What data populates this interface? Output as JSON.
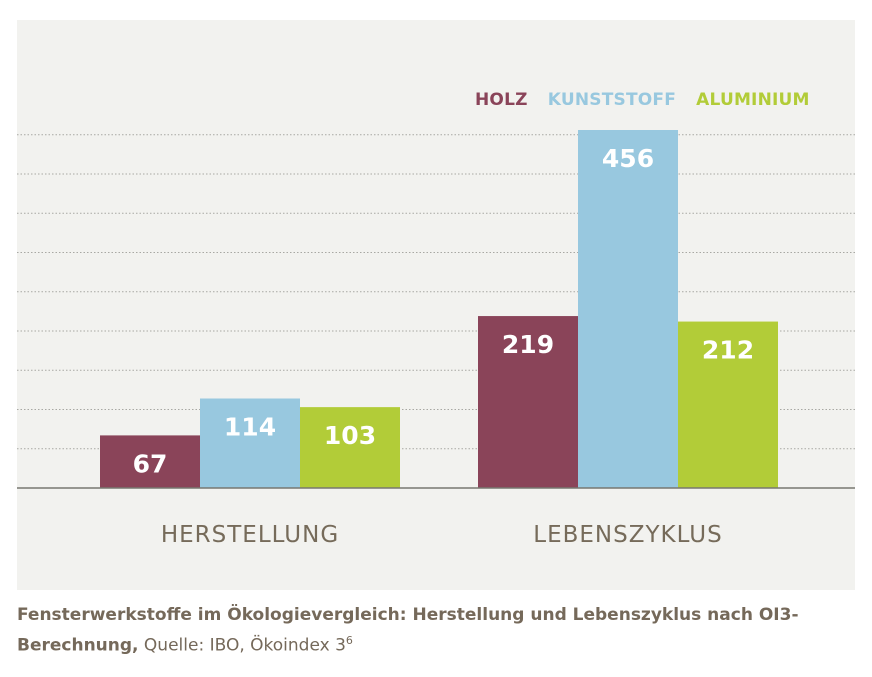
{
  "chart_data": {
    "type": "bar",
    "categories": [
      "HERSTELLUNG",
      "LEBENSZYKLUS"
    ],
    "series": [
      {
        "name": "HOLZ",
        "values": [
          67,
          219
        ],
        "color": "#8a4459"
      },
      {
        "name": "KUNSTSTOFF",
        "values": [
          114,
          456
        ],
        "color": "#98c8df"
      },
      {
        "name": "ALUMINIUM",
        "values": [
          103,
          212
        ],
        "color": "#b2cc38"
      }
    ],
    "ylim": [
      0,
      500
    ],
    "grid": true,
    "legend_position": "top-right"
  },
  "caption": {
    "bold": "Fensterwerkstoffe im Ökologievergleich: Herstellung und Lebenszyklus nach OI3-Berechnung,",
    "source": "Quelle: IBO, Ökoindex 3",
    "source_sup": "6"
  }
}
